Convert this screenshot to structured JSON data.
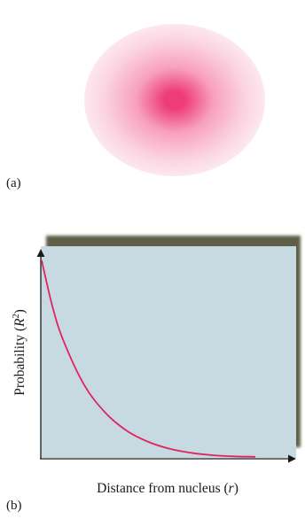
{
  "panel_a": {
    "label": "(a)",
    "description_icon": "orbital-density-cloud",
    "colors": {
      "core": "#ee3c78",
      "mid": "#f7a0bd",
      "edge": "#ffffff"
    }
  },
  "panel_b": {
    "label": "(b)",
    "y_axis": {
      "text": "Probability (",
      "var": "R",
      "exp": "2",
      "close": ")"
    },
    "x_axis": {
      "text": "Distance from nucleus (",
      "var": "r",
      "close": ")"
    }
  },
  "colors": {
    "plot_bg": "#c7dae2",
    "shadow": "#5e5e49",
    "curve": "#e0245e",
    "axis": "#1a1a1a"
  },
  "chart_data": {
    "type": "line",
    "title": "",
    "xlabel": "Distance from nucleus (r)",
    "ylabel": "Probability (R²)",
    "grid": false,
    "series": [
      {
        "x": [
          0,
          0.05,
          0.1,
          0.2,
          0.3,
          0.4,
          0.5,
          0.6,
          0.7,
          0.8,
          0.9,
          1.0
        ],
        "y": [
          1.0,
          0.77,
          0.6,
          0.37,
          0.23,
          0.14,
          0.085,
          0.05,
          0.03,
          0.018,
          0.012,
          0.01
        ]
      }
    ]
  }
}
